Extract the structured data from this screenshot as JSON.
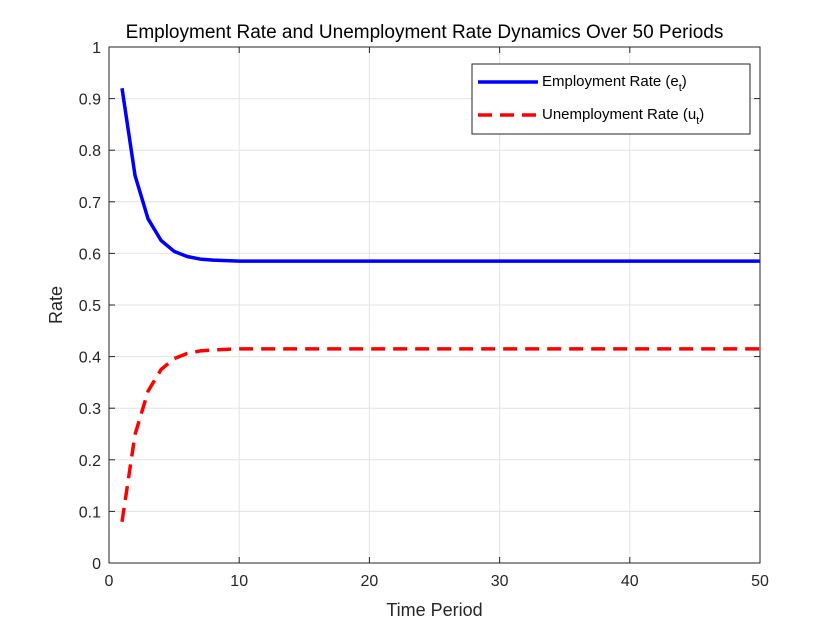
{
  "chart_data": {
    "type": "line",
    "title": "Employment Rate and Unemployment Rate Dynamics Over 50 Periods",
    "xlabel": "Time Period",
    "ylabel": "Rate",
    "xlim": [
      0,
      50
    ],
    "ylim": [
      0,
      1
    ],
    "xticks": [
      0,
      10,
      20,
      30,
      40,
      50
    ],
    "yticks": [
      0,
      0.1,
      0.2,
      0.3,
      0.4,
      0.5,
      0.6,
      0.7,
      0.8,
      0.9,
      1
    ],
    "grid": true,
    "legend_position": "top-right",
    "series": [
      {
        "name": "Employment Rate (e_t)",
        "legend_main": "Employment Rate (e",
        "legend_sub": "t",
        "legend_close": ")",
        "color": "#0000ff",
        "style": "solid",
        "x": [
          1,
          2,
          3,
          4,
          5,
          6,
          7,
          8,
          9,
          10,
          11,
          12,
          13,
          14,
          15,
          16,
          17,
          18,
          19,
          20,
          21,
          22,
          23,
          24,
          25,
          26,
          27,
          28,
          29,
          30,
          31,
          32,
          33,
          34,
          35,
          36,
          37,
          38,
          39,
          40,
          41,
          42,
          43,
          44,
          45,
          46,
          47,
          48,
          49,
          50
        ],
        "y": [
          0.92,
          0.751,
          0.667,
          0.625,
          0.604,
          0.594,
          0.589,
          0.587,
          0.586,
          0.585,
          0.585,
          0.585,
          0.585,
          0.585,
          0.585,
          0.585,
          0.585,
          0.585,
          0.585,
          0.585,
          0.585,
          0.585,
          0.585,
          0.585,
          0.585,
          0.585,
          0.585,
          0.585,
          0.585,
          0.585,
          0.585,
          0.585,
          0.585,
          0.585,
          0.585,
          0.585,
          0.585,
          0.585,
          0.585,
          0.585,
          0.585,
          0.585,
          0.585,
          0.585,
          0.585,
          0.585,
          0.585,
          0.585,
          0.585,
          0.585
        ]
      },
      {
        "name": "Unemployment Rate (u_t)",
        "legend_main": "Unemployment Rate (u",
        "legend_sub": "t",
        "legend_close": ")",
        "color": "#ff0000",
        "style": "dashed",
        "x": [
          1,
          2,
          3,
          4,
          5,
          6,
          7,
          8,
          9,
          10,
          11,
          12,
          13,
          14,
          15,
          16,
          17,
          18,
          19,
          20,
          21,
          22,
          23,
          24,
          25,
          26,
          27,
          28,
          29,
          30,
          31,
          32,
          33,
          34,
          35,
          36,
          37,
          38,
          39,
          40,
          41,
          42,
          43,
          44,
          45,
          46,
          47,
          48,
          49,
          50
        ],
        "y": [
          0.08,
          0.249,
          0.333,
          0.375,
          0.396,
          0.406,
          0.411,
          0.413,
          0.414,
          0.415,
          0.415,
          0.415,
          0.415,
          0.415,
          0.415,
          0.415,
          0.415,
          0.415,
          0.415,
          0.415,
          0.415,
          0.415,
          0.415,
          0.415,
          0.415,
          0.415,
          0.415,
          0.415,
          0.415,
          0.415,
          0.415,
          0.415,
          0.415,
          0.415,
          0.415,
          0.415,
          0.415,
          0.415,
          0.415,
          0.415,
          0.415,
          0.415,
          0.415,
          0.415,
          0.415,
          0.415,
          0.415,
          0.415,
          0.415,
          0.415
        ]
      }
    ]
  }
}
